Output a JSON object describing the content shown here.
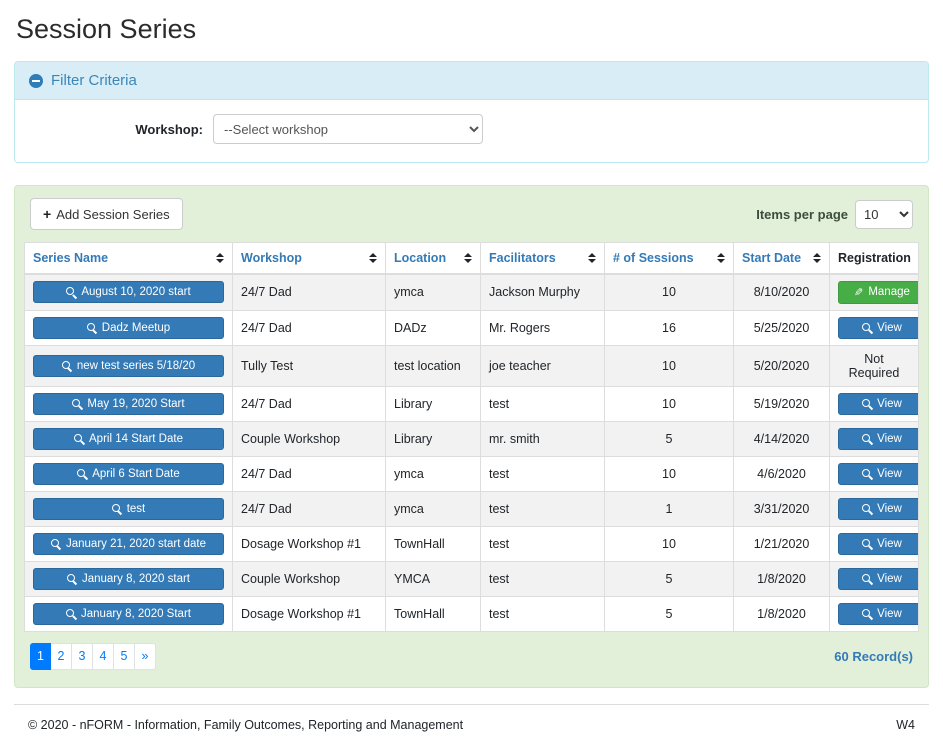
{
  "page": {
    "title": "Session Series"
  },
  "filter": {
    "title": "Filter Criteria",
    "collapse_icon": "minus-circle-icon",
    "workshop_label": "Workshop:",
    "workshop_selected": "--Select workshop"
  },
  "toolbar": {
    "add_button_label": "Add Session Series",
    "add_button_icon": "plus-icon",
    "items_per_page_label": "Items per page",
    "items_per_page_value": "10"
  },
  "table": {
    "columns": [
      {
        "label": "Series Name",
        "sortable": true
      },
      {
        "label": "Workshop",
        "sortable": true
      },
      {
        "label": "Location",
        "sortable": true
      },
      {
        "label": "Facilitators",
        "sortable": true
      },
      {
        "label": "# of Sessions",
        "sortable": true
      },
      {
        "label": "Start Date",
        "sortable": true
      },
      {
        "label": "Registration",
        "sortable": false
      }
    ],
    "rows": [
      {
        "series_name": "August 10, 2020 start",
        "workshop": "24/7 Dad",
        "location": "ymca",
        "facilitators": "Jackson Murphy",
        "sessions": "10",
        "start_date": "8/10/2020",
        "registration": {
          "type": "manage",
          "label": "Manage"
        }
      },
      {
        "series_name": "Dadz Meetup",
        "workshop": "24/7 Dad",
        "location": "DADz",
        "facilitators": "Mr. Rogers",
        "sessions": "16",
        "start_date": "5/25/2020",
        "registration": {
          "type": "view",
          "label": "View"
        }
      },
      {
        "series_name": "new test series 5/18/20",
        "workshop": "Tully Test",
        "location": "test location",
        "facilitators": "joe teacher",
        "sessions": "10",
        "start_date": "5/20/2020",
        "registration": {
          "type": "text",
          "label": "Not Required"
        }
      },
      {
        "series_name": "May 19, 2020 Start",
        "workshop": "24/7 Dad",
        "location": "Library",
        "facilitators": "test",
        "sessions": "10",
        "start_date": "5/19/2020",
        "registration": {
          "type": "view",
          "label": "View"
        }
      },
      {
        "series_name": "April 14 Start Date",
        "workshop": "Couple Workshop",
        "location": "Library",
        "facilitators": "mr. smith",
        "sessions": "5",
        "start_date": "4/14/2020",
        "registration": {
          "type": "view",
          "label": "View"
        }
      },
      {
        "series_name": "April 6 Start Date",
        "workshop": "24/7 Dad",
        "location": "ymca",
        "facilitators": "test",
        "sessions": "10",
        "start_date": "4/6/2020",
        "registration": {
          "type": "view",
          "label": "View"
        }
      },
      {
        "series_name": "test",
        "workshop": "24/7 Dad",
        "location": "ymca",
        "facilitators": "test",
        "sessions": "1",
        "start_date": "3/31/2020",
        "registration": {
          "type": "view",
          "label": "View"
        }
      },
      {
        "series_name": "January 21, 2020 start date",
        "workshop": "Dosage Workshop #1",
        "location": "TownHall",
        "facilitators": "test",
        "sessions": "10",
        "start_date": "1/21/2020",
        "registration": {
          "type": "view",
          "label": "View"
        }
      },
      {
        "series_name": "January 8, 2020 start",
        "workshop": "Couple Workshop",
        "location": "YMCA",
        "facilitators": "test",
        "sessions": "5",
        "start_date": "1/8/2020",
        "registration": {
          "type": "view",
          "label": "View"
        }
      },
      {
        "series_name": "January 8, 2020 Start",
        "workshop": "Dosage Workshop #1",
        "location": "TownHall",
        "facilitators": "test",
        "sessions": "5",
        "start_date": "1/8/2020",
        "registration": {
          "type": "view",
          "label": "View"
        }
      }
    ]
  },
  "pagination": {
    "pages": [
      "1",
      "2",
      "3",
      "4",
      "5",
      "»"
    ],
    "active": "1",
    "records_label": "60 Record(s)"
  },
  "footer": {
    "copyright": "© 2020 - nFORM - Information, Family Outcomes, Reporting and Management",
    "version": "W4"
  },
  "colors": {
    "primary_blue": "#337ab7",
    "success_green": "#47ad47",
    "pagination_blue": "#007bff",
    "filter_header_bg": "#d9edf7",
    "filter_header_border": "#bce8f1",
    "panel_green_bg": "#e2f0da",
    "panel_green_border": "#d0e6c5",
    "stripe_gray": "#f2f2f2",
    "table_border": "#dddddd"
  }
}
